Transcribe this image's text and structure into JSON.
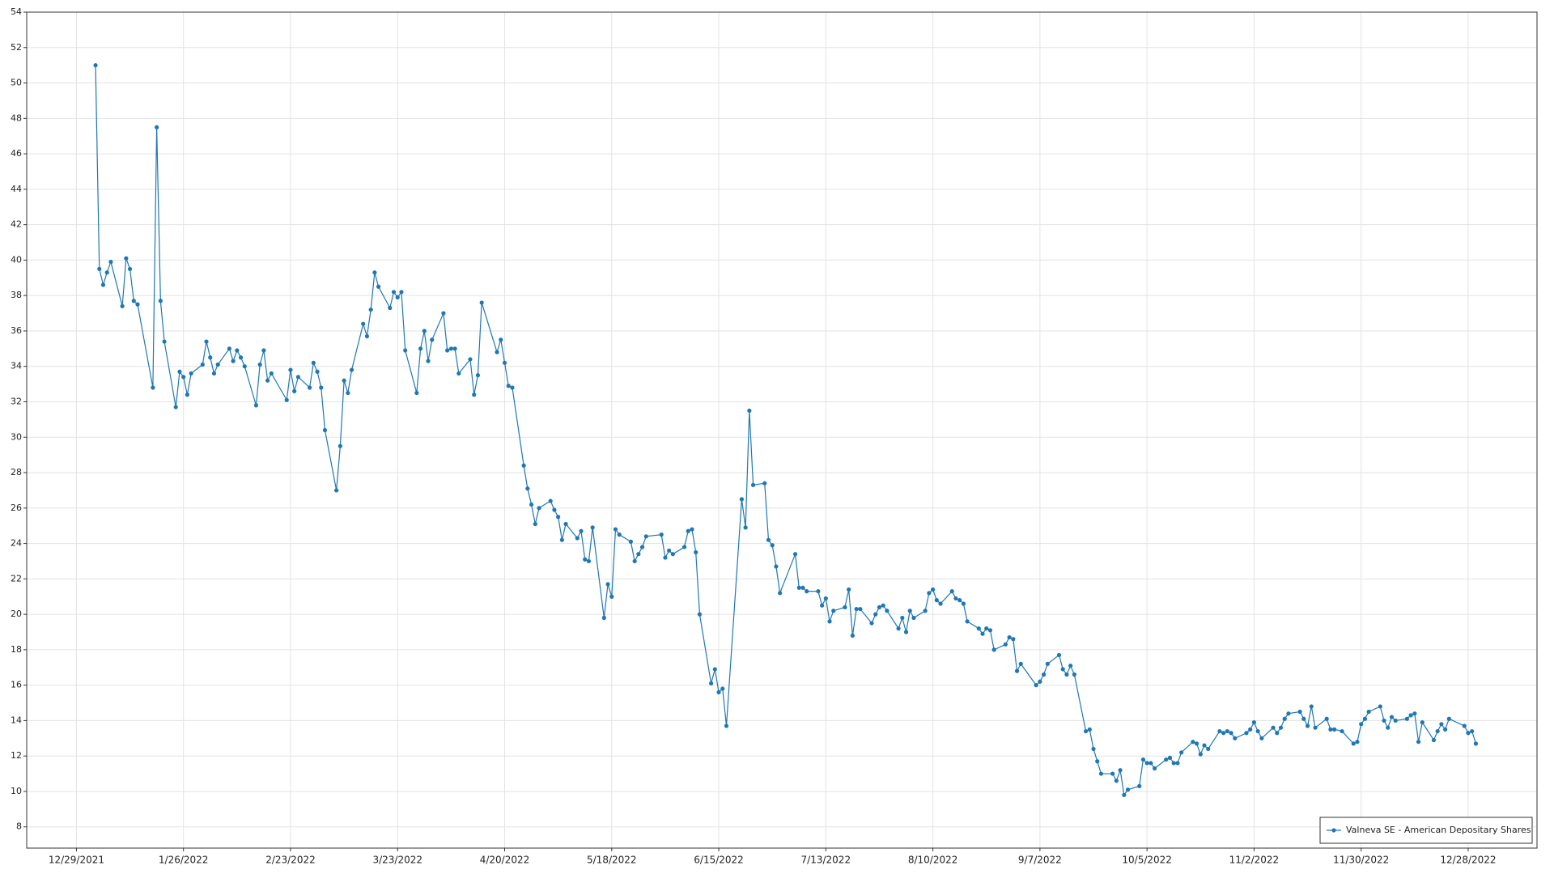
{
  "chart_data": {
    "type": "line",
    "x": [
      "1/3/2022",
      "1/4/2022",
      "1/5/2022",
      "1/6/2022",
      "1/7/2022",
      "1/10/2022",
      "1/11/2022",
      "1/12/2022",
      "1/13/2022",
      "1/14/2022",
      "1/18/2022",
      "1/19/2022",
      "1/20/2022",
      "1/21/2022",
      "1/24/2022",
      "1/25/2022",
      "1/26/2022",
      "1/27/2022",
      "1/28/2022",
      "1/31/2022",
      "2/1/2022",
      "2/2/2022",
      "2/3/2022",
      "2/4/2022",
      "2/7/2022",
      "2/8/2022",
      "2/9/2022",
      "2/10/2022",
      "2/11/2022",
      "2/14/2022",
      "2/15/2022",
      "2/16/2022",
      "2/17/2022",
      "2/18/2022",
      "2/22/2022",
      "2/23/2022",
      "2/24/2022",
      "2/25/2022",
      "2/28/2022",
      "3/1/2022",
      "3/2/2022",
      "3/3/2022",
      "3/4/2022",
      "3/7/2022",
      "3/8/2022",
      "3/9/2022",
      "3/10/2022",
      "3/11/2022",
      "3/14/2022",
      "3/15/2022",
      "3/16/2022",
      "3/17/2022",
      "3/18/2022",
      "3/21/2022",
      "3/22/2022",
      "3/23/2022",
      "3/24/2022",
      "3/25/2022",
      "3/28/2022",
      "3/29/2022",
      "3/30/2022",
      "3/31/2022",
      "4/1/2022",
      "4/4/2022",
      "4/5/2022",
      "4/6/2022",
      "4/7/2022",
      "4/8/2022",
      "4/11/2022",
      "4/12/2022",
      "4/13/2022",
      "4/14/2022",
      "4/18/2022",
      "4/19/2022",
      "4/20/2022",
      "4/21/2022",
      "4/22/2022",
      "4/25/2022",
      "4/26/2022",
      "4/27/2022",
      "4/28/2022",
      "4/29/2022",
      "5/2/2022",
      "5/3/2022",
      "5/4/2022",
      "5/5/2022",
      "5/6/2022",
      "5/9/2022",
      "5/10/2022",
      "5/11/2022",
      "5/12/2022",
      "5/13/2022",
      "5/16/2022",
      "5/17/2022",
      "5/18/2022",
      "5/19/2022",
      "5/20/2022",
      "5/23/2022",
      "5/24/2022",
      "5/25/2022",
      "5/26/2022",
      "5/27/2022",
      "5/31/2022",
      "6/1/2022",
      "6/2/2022",
      "6/3/2022",
      "6/6/2022",
      "6/7/2022",
      "6/8/2022",
      "6/9/2022",
      "6/10/2022",
      "6/13/2022",
      "6/14/2022",
      "6/15/2022",
      "6/16/2022",
      "6/17/2022",
      "6/21/2022",
      "6/22/2022",
      "6/23/2022",
      "6/24/2022",
      "6/27/2022",
      "6/28/2022",
      "6/29/2022",
      "6/30/2022",
      "7/1/2022",
      "7/5/2022",
      "7/6/2022",
      "7/7/2022",
      "7/8/2022",
      "7/11/2022",
      "7/12/2022",
      "7/13/2022",
      "7/14/2022",
      "7/15/2022",
      "7/18/2022",
      "7/19/2022",
      "7/20/2022",
      "7/21/2022",
      "7/22/2022",
      "7/25/2022",
      "7/26/2022",
      "7/27/2022",
      "7/28/2022",
      "7/29/2022",
      "8/1/2022",
      "8/2/2022",
      "8/3/2022",
      "8/4/2022",
      "8/5/2022",
      "8/8/2022",
      "8/9/2022",
      "8/10/2022",
      "8/11/2022",
      "8/12/2022",
      "8/15/2022",
      "8/16/2022",
      "8/17/2022",
      "8/18/2022",
      "8/19/2022",
      "8/22/2022",
      "8/23/2022",
      "8/24/2022",
      "8/25/2022",
      "8/26/2022",
      "8/29/2022",
      "8/30/2022",
      "8/31/2022",
      "9/1/2022",
      "9/2/2022",
      "9/6/2022",
      "9/7/2022",
      "9/8/2022",
      "9/9/2022",
      "9/12/2022",
      "9/13/2022",
      "9/14/2022",
      "9/15/2022",
      "9/16/2022",
      "9/19/2022",
      "9/20/2022",
      "9/21/2022",
      "9/22/2022",
      "9/23/2022",
      "9/26/2022",
      "9/27/2022",
      "9/28/2022",
      "9/29/2022",
      "9/30/2022",
      "10/3/2022",
      "10/4/2022",
      "10/5/2022",
      "10/6/2022",
      "10/7/2022",
      "10/10/2022",
      "10/11/2022",
      "10/12/2022",
      "10/13/2022",
      "10/14/2022",
      "10/17/2022",
      "10/18/2022",
      "10/19/2022",
      "10/20/2022",
      "10/21/2022",
      "10/24/2022",
      "10/25/2022",
      "10/26/2022",
      "10/27/2022",
      "10/28/2022",
      "10/31/2022",
      "11/1/2022",
      "11/2/2022",
      "11/3/2022",
      "11/4/2022",
      "11/7/2022",
      "11/8/2022",
      "11/9/2022",
      "11/10/2022",
      "11/11/2022",
      "11/14/2022",
      "11/15/2022",
      "11/16/2022",
      "11/17/2022",
      "11/18/2022",
      "11/21/2022",
      "11/22/2022",
      "11/23/2022",
      "11/25/2022",
      "11/28/2022",
      "11/29/2022",
      "11/30/2022",
      "12/1/2022",
      "12/2/2022",
      "12/5/2022",
      "12/6/2022",
      "12/7/2022",
      "12/8/2022",
      "12/9/2022",
      "12/12/2022",
      "12/13/2022",
      "12/14/2022",
      "12/15/2022",
      "12/16/2022",
      "12/19/2022",
      "12/20/2022",
      "12/21/2022",
      "12/22/2022",
      "12/23/2022",
      "12/27/2022",
      "12/28/2022",
      "12/29/2022",
      "12/30/2022"
    ],
    "series": [
      {
        "name": "Valneva SE - American Depositary Shares",
        "color": "#1f77b4",
        "values": [
          51.0,
          39.5,
          38.6,
          39.3,
          39.9,
          37.4,
          40.1,
          39.5,
          37.7,
          37.5,
          32.8,
          47.5,
          37.7,
          35.4,
          31.7,
          33.7,
          33.4,
          32.4,
          33.6,
          34.1,
          35.4,
          34.5,
          33.6,
          34.1,
          35.0,
          34.3,
          34.9,
          34.5,
          34.0,
          31.8,
          34.1,
          34.9,
          33.2,
          33.6,
          32.1,
          33.8,
          32.6,
          33.4,
          32.8,
          34.2,
          33.7,
          32.8,
          30.4,
          27.0,
          29.5,
          33.2,
          32.5,
          33.8,
          36.4,
          35.7,
          37.2,
          39.3,
          38.5,
          37.3,
          38.2,
          37.9,
          38.2,
          34.9,
          32.5,
          35.0,
          36.0,
          34.3,
          35.5,
          37.0,
          34.9,
          35.0,
          35.0,
          33.6,
          34.4,
          32.4,
          33.5,
          37.6,
          34.8,
          35.5,
          34.2,
          32.9,
          32.8,
          28.4,
          27.1,
          26.2,
          25.1,
          26.0,
          26.4,
          25.9,
          25.5,
          24.2,
          25.1,
          24.3,
          24.7,
          23.1,
          23.0,
          24.9,
          19.8,
          21.7,
          21.0,
          24.8,
          24.5,
          24.1,
          23.0,
          23.4,
          23.8,
          24.4,
          24.5,
          23.2,
          23.6,
          23.4,
          23.8,
          24.7,
          24.8,
          23.5,
          20.0,
          16.1,
          16.9,
          15.6,
          15.8,
          13.7,
          26.5,
          24.9,
          31.5,
          27.3,
          27.4,
          24.2,
          23.9,
          22.7,
          21.2,
          23.4,
          21.5,
          21.5,
          21.3,
          21.3,
          20.5,
          20.9,
          19.6,
          20.2,
          20.4,
          21.4,
          18.8,
          20.3,
          20.3,
          19.5,
          20.0,
          20.4,
          20.5,
          20.2,
          19.2,
          19.8,
          19.0,
          20.2,
          19.8,
          20.2,
          21.2,
          21.4,
          20.8,
          20.6,
          21.3,
          20.9,
          20.8,
          20.6,
          19.6,
          19.2,
          18.9,
          19.2,
          19.1,
          18.0,
          18.3,
          18.7,
          18.6,
          16.8,
          17.2,
          16.0,
          16.2,
          16.6,
          17.2,
          17.7,
          16.9,
          16.6,
          17.1,
          16.6,
          13.4,
          13.5,
          12.4,
          11.7,
          11.0,
          11.0,
          10.6,
          11.2,
          9.8,
          10.1,
          10.3,
          11.8,
          11.6,
          11.6,
          11.3,
          11.8,
          11.9,
          11.6,
          11.6,
          12.2,
          12.8,
          12.7,
          12.1,
          12.6,
          12.4,
          13.4,
          13.3,
          13.4,
          13.3,
          13.0,
          13.3,
          13.5,
          13.9,
          13.4,
          13.0,
          13.6,
          13.3,
          13.6,
          14.1,
          14.4,
          14.5,
          14.1,
          13.7,
          14.8,
          13.6,
          14.1,
          13.5,
          13.5,
          13.4,
          12.7,
          12.8,
          13.8,
          14.1,
          14.5,
          14.8,
          14.0,
          13.6,
          14.2,
          14.0,
          14.1,
          14.3,
          14.4,
          12.8,
          13.9,
          12.9,
          13.4,
          13.8,
          13.5,
          14.1,
          13.7,
          13.3,
          13.4,
          12.7
        ]
      }
    ],
    "xlim": [
      "12/16/2021",
      "1/15/2023"
    ],
    "xticks": [
      "12/29/2021",
      "1/26/2022",
      "2/23/2022",
      "3/23/2022",
      "4/20/2022",
      "5/18/2022",
      "6/15/2022",
      "7/13/2022",
      "8/10/2022",
      "9/7/2022",
      "10/5/2022",
      "11/2/2022",
      "11/30/2022",
      "12/28/2022"
    ],
    "ylim": [
      6.8,
      54
    ],
    "yticks": [
      8,
      10,
      12,
      14,
      16,
      18,
      20,
      22,
      24,
      26,
      28,
      30,
      32,
      34,
      36,
      38,
      40,
      42,
      44,
      46,
      48,
      50,
      52,
      54
    ],
    "grid": true,
    "legend": "lower right"
  }
}
